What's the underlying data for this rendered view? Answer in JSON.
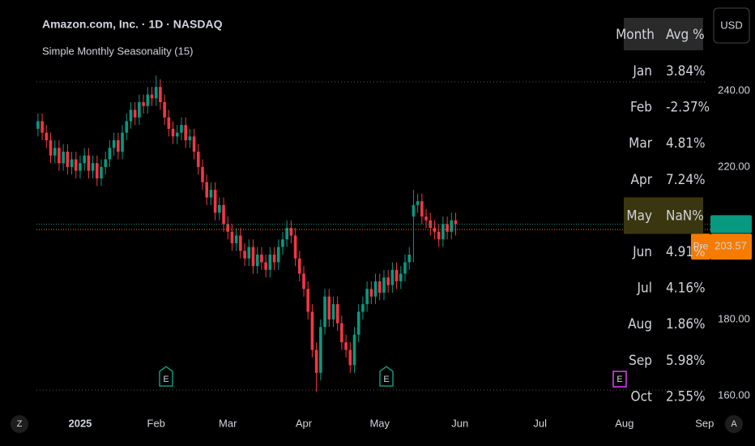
{
  "chart_data": {
    "type": "candlestick",
    "title": "Amazon.com, Inc. · 1D · NASDAQ",
    "subtitle": "Simple Monthly Seasonality (15)",
    "currency": "USD",
    "up_color": "#089981",
    "down_color": "#f23645",
    "categories": [
      null,
      null,
      null,
      null,
      null,
      null,
      null,
      null,
      null,
      null,
      null,
      null,
      null,
      null,
      null,
      null,
      null,
      null,
      null,
      null,
      null,
      null,
      null,
      null,
      null,
      null,
      null,
      null,
      null,
      null,
      null,
      null,
      null,
      null,
      null,
      null,
      null,
      null,
      null,
      null,
      null,
      null,
      null,
      null,
      null,
      null,
      null,
      null,
      null,
      null,
      null,
      null,
      null,
      null,
      null,
      null,
      null,
      null,
      null,
      null,
      null,
      null,
      null,
      null,
      null,
      null,
      null,
      null,
      null,
      null,
      null,
      null,
      null,
      null,
      null,
      null,
      null,
      null,
      null,
      null,
      null,
      null,
      null,
      null,
      null,
      null,
      null,
      null,
      null,
      null,
      null,
      null,
      null,
      null,
      null,
      null,
      null,
      null,
      null,
      null
    ],
    "open": [
      230,
      232,
      229,
      227,
      223,
      225,
      221,
      224,
      220,
      222,
      219,
      221,
      223,
      219,
      221,
      217,
      220,
      222,
      225,
      227,
      224,
      229,
      232,
      235,
      233,
      237,
      236,
      239,
      238,
      241,
      237,
      233,
      230,
      228,
      229,
      231,
      227,
      228,
      224,
      220,
      216,
      212,
      214,
      208,
      210,
      205,
      203,
      200,
      202,
      198,
      196,
      199,
      194,
      197,
      195,
      193,
      197,
      195,
      199,
      201,
      204,
      202,
      196,
      192,
      188,
      182,
      172,
      166,
      178,
      186,
      180,
      184,
      179,
      174,
      172,
      168,
      176,
      182,
      184,
      188,
      186,
      190,
      187,
      191,
      189,
      193,
      190,
      192,
      195,
      207,
      210,
      211,
      207,
      206,
      204,
      203,
      201,
      205,
      203,
      206
    ],
    "high": [
      234,
      234,
      231,
      229,
      227,
      227,
      226,
      226,
      224,
      224,
      223,
      225,
      225,
      223,
      223,
      222,
      224,
      227,
      229,
      229,
      231,
      234,
      237,
      237,
      239,
      239,
      241,
      241,
      244,
      243,
      239,
      235,
      232,
      231,
      233,
      233,
      230,
      230,
      226,
      222,
      218,
      216,
      216,
      212,
      212,
      207,
      205,
      204,
      204,
      200,
      201,
      201,
      199,
      199,
      197,
      199,
      199,
      201,
      203,
      206,
      206,
      204,
      198,
      194,
      190,
      184,
      174,
      180,
      188,
      188,
      186,
      186,
      181,
      176,
      174,
      178,
      184,
      186,
      190,
      190,
      192,
      192,
      193,
      193,
      195,
      195,
      194,
      197,
      199,
      214,
      213,
      213,
      209,
      208,
      206,
      205,
      207,
      207,
      208,
      208
    ],
    "low": [
      228,
      227,
      225,
      221,
      221,
      219,
      219,
      218,
      218,
      217,
      217,
      219,
      217,
      217,
      215,
      215,
      218,
      220,
      223,
      222,
      222,
      227,
      230,
      231,
      231,
      234,
      234,
      236,
      236,
      235,
      231,
      228,
      226,
      226,
      227,
      225,
      225,
      222,
      218,
      214,
      210,
      210,
      206,
      206,
      203,
      201,
      198,
      198,
      196,
      194,
      194,
      192,
      192,
      193,
      191,
      191,
      193,
      193,
      197,
      199,
      200,
      194,
      190,
      186,
      180,
      170,
      161,
      164,
      176,
      178,
      178,
      177,
      172,
      170,
      166,
      166,
      174,
      180,
      182,
      184,
      184,
      185,
      185,
      187,
      187,
      188,
      188,
      190,
      193,
      195,
      208,
      205,
      204,
      202,
      201,
      199,
      199,
      201,
      201,
      202
    ],
    "close": [
      232,
      229,
      227,
      223,
      225,
      221,
      224,
      220,
      222,
      219,
      221,
      223,
      219,
      221,
      217,
      220,
      222,
      225,
      227,
      224,
      229,
      232,
      235,
      233,
      237,
      236,
      239,
      238,
      241,
      237,
      233,
      230,
      228,
      229,
      231,
      227,
      228,
      224,
      220,
      216,
      212,
      214,
      208,
      210,
      205,
      203,
      200,
      202,
      198,
      196,
      199,
      194,
      197,
      195,
      193,
      197,
      195,
      199,
      201,
      204,
      202,
      196,
      192,
      188,
      182,
      172,
      166,
      178,
      186,
      180,
      184,
      179,
      174,
      172,
      168,
      176,
      182,
      184,
      188,
      186,
      190,
      187,
      191,
      189,
      193,
      190,
      192,
      195,
      197,
      210,
      211,
      207,
      206,
      204,
      203,
      201,
      205,
      203,
      206,
      205.01
    ],
    "xlim": [
      -9,
      159
    ],
    "xticks": [
      {
        "value": 10,
        "label": "2025"
      },
      {
        "value": 28,
        "label": "Feb"
      },
      {
        "value": 45,
        "label": "Mar"
      },
      {
        "value": 63,
        "label": "Apr"
      },
      {
        "value": 81,
        "label": "May"
      },
      {
        "value": 100,
        "label": "Jun"
      },
      {
        "value": 119,
        "label": "Jul"
      },
      {
        "value": 139,
        "label": "Aug"
      },
      {
        "value": 158,
        "label": "Sep"
      }
    ],
    "ylim": [
      155.3,
      263.8
    ],
    "yticks": [
      {
        "value": 160,
        "label": "160.00"
      },
      {
        "value": 180,
        "label": "180.00"
      },
      {
        "value": 220,
        "label": "220.00"
      },
      {
        "value": 240,
        "label": "240.00"
      }
    ],
    "last_price": 205.01,
    "last_color": "#089981",
    "premarket": {
      "label": "Pre",
      "value": 203.57,
      "color": "#f57c00"
    }
  },
  "table": {
    "header": [
      "Month",
      "Avg %"
    ],
    "rows": [
      [
        "Jan",
        "3.84%"
      ],
      [
        "Feb",
        "-2.37%"
      ],
      [
        "Mar",
        "4.81%"
      ],
      [
        "Apr",
        "7.24%"
      ],
      [
        "May",
        "NaN%"
      ],
      [
        "Jun",
        "4.91%"
      ],
      [
        "Jul",
        "4.16%"
      ],
      [
        "Aug",
        "1.86%"
      ],
      [
        "Sep",
        "5.98%"
      ],
      [
        "Oct",
        "2.55%"
      ]
    ],
    "highlight_row": 4,
    "positive_color": "#6fbf5f",
    "negative_color": "#f7525f"
  },
  "axis_buttons": [
    "Z",
    "A"
  ]
}
